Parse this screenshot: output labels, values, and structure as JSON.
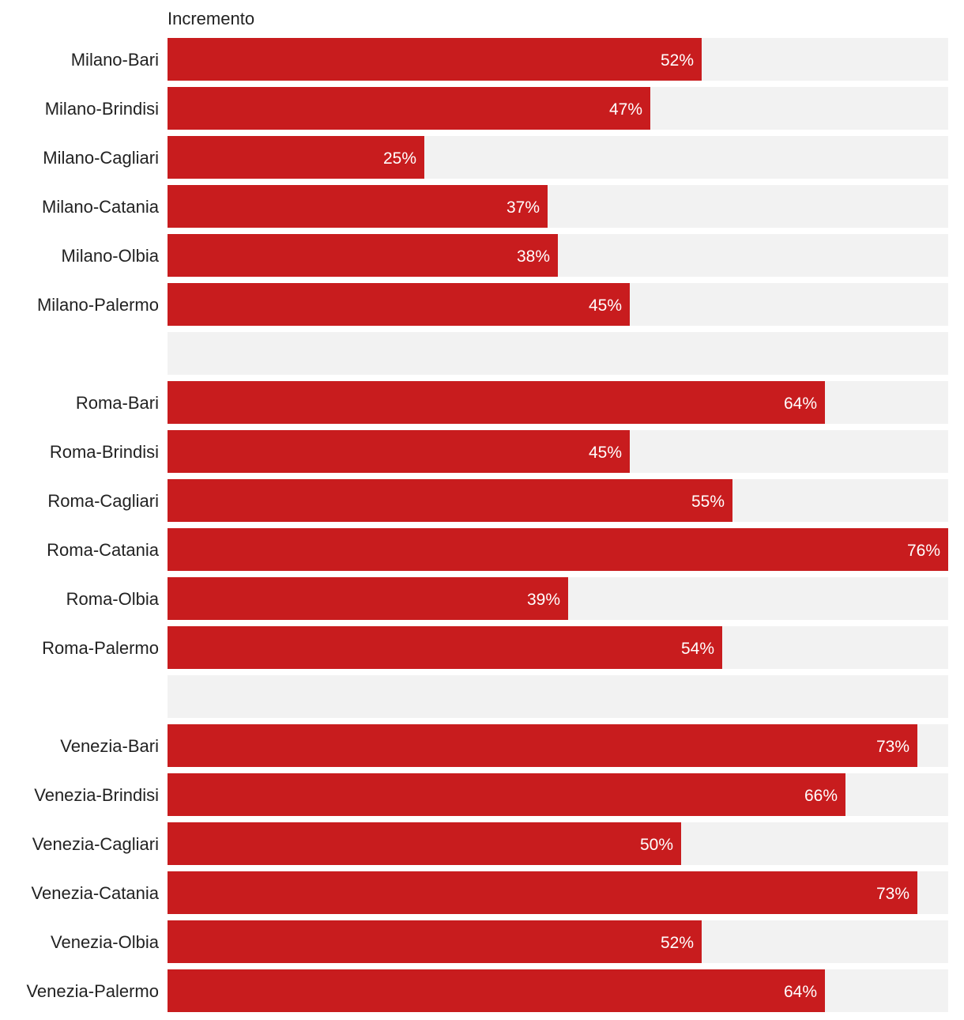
{
  "chart_data": {
    "type": "bar",
    "orientation": "horizontal",
    "title": "",
    "value_column_header": "Incremento",
    "xlim": [
      0,
      76
    ],
    "unit": "%",
    "colors": {
      "bar": "#c81c1e",
      "track": "#f2f2f2",
      "value_text": "#ffffff",
      "label_text": "#222222"
    },
    "rows": [
      {
        "label": "Milano-Bari",
        "value": 52,
        "value_label": "52%"
      },
      {
        "label": "Milano-Brindisi",
        "value": 47,
        "value_label": "47%"
      },
      {
        "label": "Milano-Cagliari",
        "value": 25,
        "value_label": "25%"
      },
      {
        "label": "Milano-Catania",
        "value": 37,
        "value_label": "37%"
      },
      {
        "label": "Milano-Olbia",
        "value": 38,
        "value_label": "38%"
      },
      {
        "label": "Milano-Palermo",
        "value": 45,
        "value_label": "45%"
      },
      {
        "label": "",
        "value": null,
        "value_label": ""
      },
      {
        "label": "Roma-Bari",
        "value": 64,
        "value_label": "64%"
      },
      {
        "label": "Roma-Brindisi",
        "value": 45,
        "value_label": "45%"
      },
      {
        "label": "Roma-Cagliari",
        "value": 55,
        "value_label": "55%"
      },
      {
        "label": "Roma-Catania",
        "value": 76,
        "value_label": "76%"
      },
      {
        "label": "Roma-Olbia",
        "value": 39,
        "value_label": "39%"
      },
      {
        "label": "Roma-Palermo",
        "value": 54,
        "value_label": "54%"
      },
      {
        "label": "",
        "value": null,
        "value_label": ""
      },
      {
        "label": "Venezia-Bari",
        "value": 73,
        "value_label": "73%"
      },
      {
        "label": "Venezia-Brindisi",
        "value": 66,
        "value_label": "66%"
      },
      {
        "label": "Venezia-Cagliari",
        "value": 50,
        "value_label": "50%"
      },
      {
        "label": "Venezia-Catania",
        "value": 73,
        "value_label": "73%"
      },
      {
        "label": "Venezia-Olbia",
        "value": 52,
        "value_label": "52%"
      },
      {
        "label": "Venezia-Palermo",
        "value": 64,
        "value_label": "64%"
      }
    ]
  }
}
